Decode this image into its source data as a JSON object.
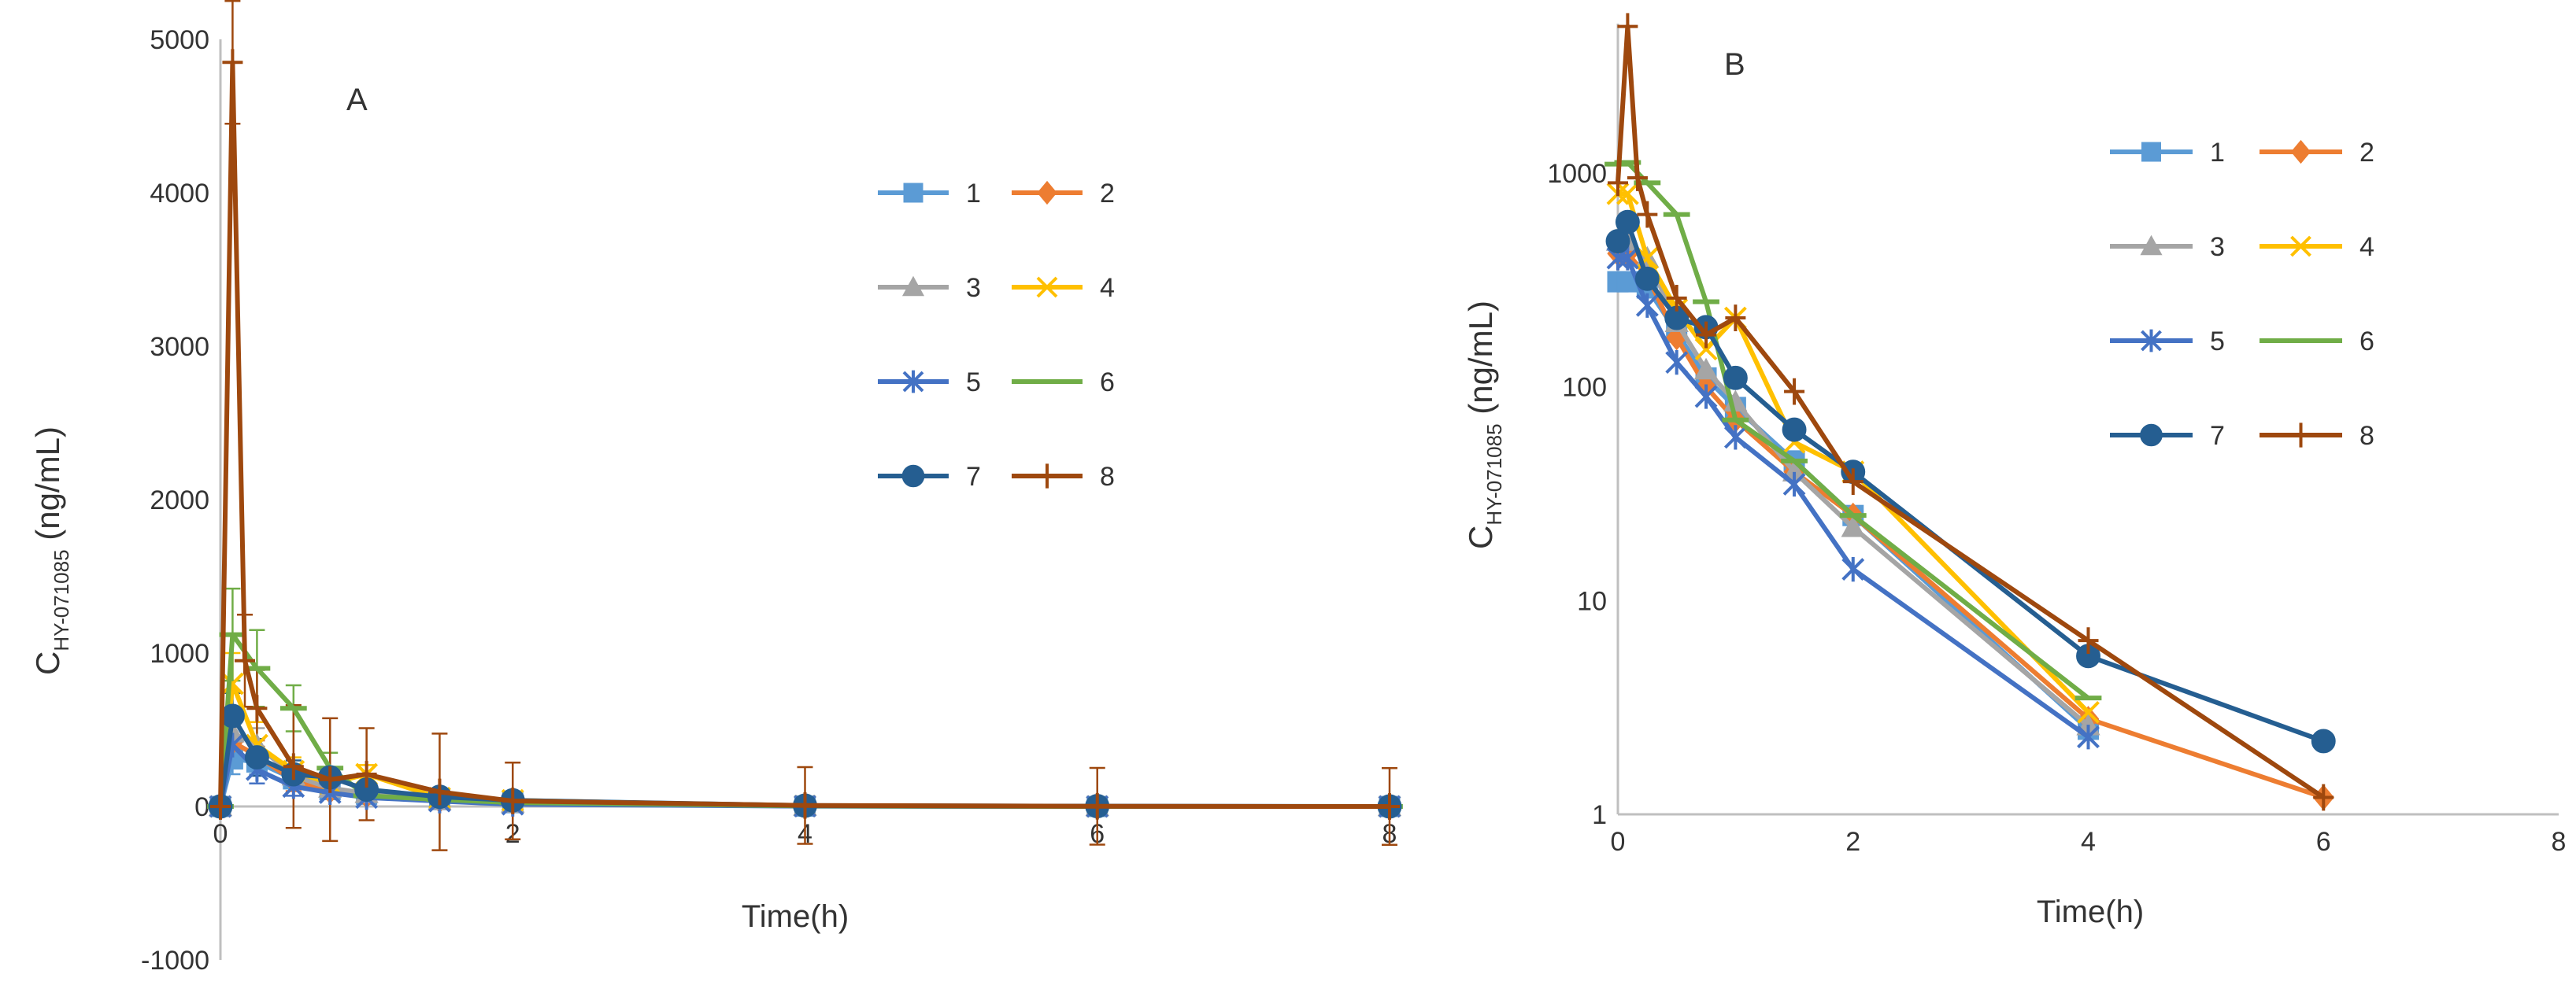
{
  "chart_data": [
    {
      "panel": "A",
      "type": "line",
      "title": "A",
      "xlabel": "Time(h)",
      "ylabel_main": "C",
      "ylabel_sub": "HY-071085",
      "ylabel_units": " (ng/mL)",
      "xlim": [
        0,
        8
      ],
      "ylim": [
        -1000,
        5000
      ],
      "yscale": "linear",
      "x_ticks": [
        0,
        2,
        4,
        6,
        8
      ],
      "x_tick_labels": [
        "0",
        "2",
        "4",
        "6",
        "8"
      ],
      "y_ticks": [
        -1000,
        0,
        1000,
        2000,
        3000,
        4000,
        5000
      ],
      "y_tick_labels": [
        "-1000",
        "0",
        "1000",
        "2000",
        "3000",
        "4000",
        "5000"
      ],
      "legend_position": "right",
      "error_bars": true,
      "series": [
        {
          "name": "1",
          "color": "#5B9BD5",
          "marker": "square",
          "x": [
            0,
            0.083,
            0.25,
            0.5,
            0.75,
            1,
            1.5,
            2,
            4,
            6,
            8
          ],
          "y": [
            0,
            310,
            290,
            180,
            110,
            80,
            45,
            25,
            2.5,
            0,
            0
          ],
          "err": [
            0,
            100,
            80,
            60,
            40,
            30,
            20,
            10,
            5,
            0,
            0
          ]
        },
        {
          "name": "2",
          "color": "#ED7D31",
          "marker": "diamond",
          "x": [
            0,
            0.083,
            0.25,
            0.5,
            0.75,
            1,
            1.5,
            2,
            4,
            6,
            8
          ],
          "y": [
            0,
            420,
            330,
            170,
            100,
            70,
            40,
            25,
            2.8,
            1.2,
            0
          ],
          "err": [
            0,
            120,
            100,
            70,
            40,
            30,
            20,
            10,
            5,
            0,
            0
          ]
        },
        {
          "name": "3",
          "color": "#A5A5A5",
          "marker": "triangle",
          "x": [
            0,
            0.083,
            0.25,
            0.5,
            0.75,
            1,
            1.5,
            2,
            4,
            6,
            8
          ],
          "y": [
            0,
            480,
            400,
            200,
            120,
            85,
            40,
            22,
            2.6,
            0,
            0
          ],
          "err": [
            0,
            150,
            110,
            70,
            50,
            30,
            20,
            10,
            5,
            0,
            0
          ]
        },
        {
          "name": "4",
          "color": "#FFC000",
          "marker": "x",
          "x": [
            0,
            0.083,
            0.25,
            0.5,
            0.75,
            1,
            1.5,
            2,
            4,
            6,
            8
          ],
          "y": [
            0,
            800,
            400,
            230,
            150,
            210,
            55,
            40,
            3.0,
            0,
            0
          ],
          "err": [
            0,
            200,
            150,
            90,
            70,
            60,
            30,
            15,
            5,
            0,
            0
          ]
        },
        {
          "name": "5",
          "color": "#4472C4",
          "marker": "star",
          "x": [
            0,
            0.083,
            0.25,
            0.5,
            0.75,
            1,
            1.5,
            2,
            4,
            6,
            8
          ],
          "y": [
            0,
            400,
            240,
            130,
            90,
            58,
            35,
            14,
            2.3,
            0,
            0
          ],
          "err": [
            0,
            120,
            90,
            60,
            40,
            30,
            15,
            8,
            3,
            0,
            0
          ]
        },
        {
          "name": "6",
          "color": "#70AD47",
          "marker": "dash",
          "x": [
            0,
            0.083,
            0.25,
            0.5,
            0.75,
            1,
            1.5,
            2,
            4,
            6,
            8
          ],
          "y": [
            0,
            1120,
            900,
            640,
            250,
            70,
            45,
            25,
            3.5,
            0,
            0
          ],
          "err": [
            0,
            300,
            250,
            150,
            100,
            40,
            20,
            10,
            5,
            0,
            0
          ]
        },
        {
          "name": "7",
          "color": "#255E91",
          "marker": "circle",
          "x": [
            0,
            0.083,
            0.25,
            0.5,
            0.75,
            1,
            1.5,
            2,
            4,
            6,
            8
          ],
          "y": [
            0,
            590,
            320,
            210,
            190,
            110,
            63,
            40,
            5.5,
            2.2,
            0
          ],
          "err": [
            0,
            150,
            120,
            90,
            60,
            40,
            20,
            10,
            5,
            0,
            0
          ]
        },
        {
          "name": "8",
          "color": "#9E480E",
          "marker": "plus",
          "x": [
            0,
            0.083,
            0.167,
            0.25,
            0.5,
            0.75,
            1,
            1.5,
            2,
            4,
            6,
            8
          ],
          "y": [
            0,
            4850,
            950,
            640,
            260,
            175,
            210,
            95,
            36,
            6.5,
            1.2,
            0
          ],
          "err": [
            0,
            400,
            300,
            250,
            400,
            400,
            300,
            380,
            250,
            250,
            250,
            250
          ]
        }
      ]
    },
    {
      "panel": "B",
      "type": "line",
      "title": "B",
      "xlabel": "Time(h)",
      "ylabel_main": "C",
      "ylabel_sub": "HY-071085",
      "ylabel_units": " (ng/mL)",
      "xlim": [
        0,
        8
      ],
      "ylim": [
        1,
        5000
      ],
      "yscale": "log",
      "x_ticks": [
        0,
        2,
        4,
        6,
        8
      ],
      "x_tick_labels": [
        "0",
        "2",
        "4",
        "6",
        "8"
      ],
      "y_ticks": [
        1,
        10,
        100,
        1000
      ],
      "y_tick_labels": [
        "1",
        "10",
        "100",
        "1000"
      ],
      "legend_position": "right",
      "series": [
        {
          "name": "1",
          "color": "#5B9BD5",
          "marker": "square",
          "x": [
            0,
            0.083,
            0.25,
            0.5,
            0.75,
            1,
            1.5,
            2,
            4
          ],
          "y": [
            310,
            310,
            290,
            180,
            110,
            80,
            45,
            25,
            2.5
          ]
        },
        {
          "name": "2",
          "color": "#ED7D31",
          "marker": "diamond",
          "x": [
            0,
            0.083,
            0.25,
            0.5,
            0.75,
            1,
            1.5,
            2,
            4,
            6
          ],
          "y": [
            420,
            420,
            330,
            170,
            100,
            70,
            40,
            25,
            2.8,
            1.2
          ]
        },
        {
          "name": "3",
          "color": "#A5A5A5",
          "marker": "triangle",
          "x": [
            0,
            0.083,
            0.25,
            0.5,
            0.75,
            1,
            1.5,
            2,
            4
          ],
          "y": [
            480,
            480,
            400,
            200,
            120,
            85,
            40,
            22,
            2.6
          ]
        },
        {
          "name": "4",
          "color": "#FFC000",
          "marker": "x",
          "x": [
            0,
            0.083,
            0.25,
            0.5,
            0.75,
            1,
            1.5,
            2,
            4
          ],
          "y": [
            800,
            800,
            400,
            230,
            150,
            210,
            55,
            40,
            3.0
          ]
        },
        {
          "name": "5",
          "color": "#4472C4",
          "marker": "star",
          "x": [
            0,
            0.083,
            0.25,
            0.5,
            0.75,
            1,
            1.5,
            2,
            4
          ],
          "y": [
            400,
            400,
            240,
            130,
            90,
            58,
            35,
            14,
            2.3
          ]
        },
        {
          "name": "6",
          "color": "#70AD47",
          "marker": "dash",
          "x": [
            0,
            0.083,
            0.25,
            0.5,
            0.75,
            1,
            1.5,
            2,
            4
          ],
          "y": [
            1100,
            1120,
            900,
            640,
            250,
            70,
            45,
            25,
            3.5
          ]
        },
        {
          "name": "7",
          "color": "#255E91",
          "marker": "circle",
          "x": [
            0,
            0.083,
            0.25,
            0.5,
            0.75,
            1,
            1.5,
            2,
            4,
            6
          ],
          "y": [
            480,
            590,
            320,
            210,
            190,
            110,
            63,
            40,
            5.5,
            2.2
          ]
        },
        {
          "name": "8",
          "color": "#9E480E",
          "marker": "plus",
          "x": [
            0,
            0.083,
            0.167,
            0.25,
            0.5,
            0.75,
            1,
            1.5,
            2,
            4,
            6
          ],
          "y": [
            900,
            4850,
            950,
            640,
            260,
            175,
            210,
            95,
            36,
            6.5,
            1.2
          ]
        }
      ]
    }
  ]
}
